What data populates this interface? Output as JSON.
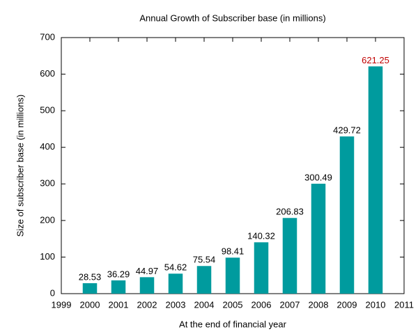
{
  "chart_data": {
    "type": "bar",
    "title": "Annual Growth of Subscriber base (in millions)",
    "x_label": "At the end of financial year",
    "y_label": "Size of subscriber base (in millions)",
    "x": [
      2000,
      2001,
      2002,
      2003,
      2004,
      2005,
      2006,
      2007,
      2008,
      2009,
      2010
    ],
    "values": [
      28.53,
      36.29,
      44.97,
      54.62,
      75.54,
      98.41,
      140.32,
      206.83,
      300.49,
      429.72,
      621.25
    ],
    "value_label_colors": [
      "#000000",
      "#000000",
      "#000000",
      "#000000",
      "#000000",
      "#000000",
      "#000000",
      "#000000",
      "#000000",
      "#000000",
      "#c00000"
    ],
    "color": "#009b9e",
    "xlim": [
      1999,
      2011
    ],
    "xticks": [
      1999,
      2000,
      2001,
      2002,
      2003,
      2004,
      2005,
      2006,
      2007,
      2008,
      2009,
      2010,
      2011
    ],
    "ylim": [
      0,
      700
    ],
    "yticks": [
      0,
      100,
      200,
      300,
      400,
      500,
      600,
      700
    ],
    "grid": false
  }
}
